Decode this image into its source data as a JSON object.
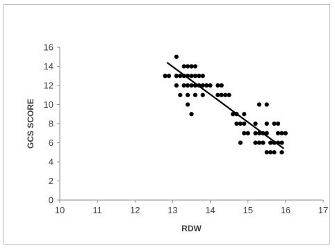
{
  "chart_data": {
    "type": "scatter",
    "title": "",
    "xlabel": "RDW",
    "ylabel": "GCS SCORE",
    "xlim": [
      10,
      17
    ],
    "ylim": [
      0,
      16
    ],
    "x_ticks": [
      "10",
      "11",
      "12",
      "13",
      "14",
      "15",
      "16",
      "17"
    ],
    "y_ticks": [
      "0",
      "2",
      "4",
      "6",
      "8",
      "10",
      "12",
      "14",
      "16"
    ],
    "grid": false,
    "legend": "none",
    "marker_color": "#000000",
    "points": [
      [
        12.8,
        13
      ],
      [
        12.9,
        13
      ],
      [
        13.1,
        15
      ],
      [
        13.1,
        13
      ],
      [
        13.1,
        12
      ],
      [
        13.2,
        13
      ],
      [
        13.2,
        11
      ],
      [
        13.3,
        14
      ],
      [
        13.3,
        13
      ],
      [
        13.3,
        12
      ],
      [
        13.4,
        14
      ],
      [
        13.4,
        13
      ],
      [
        13.4,
        12
      ],
      [
        13.4,
        11
      ],
      [
        13.4,
        10
      ],
      [
        13.5,
        14
      ],
      [
        13.5,
        13
      ],
      [
        13.5,
        12
      ],
      [
        13.5,
        9
      ],
      [
        13.6,
        14
      ],
      [
        13.6,
        13
      ],
      [
        13.6,
        12
      ],
      [
        13.6,
        11
      ],
      [
        13.7,
        13
      ],
      [
        13.7,
        12
      ],
      [
        13.8,
        13
      ],
      [
        13.8,
        12
      ],
      [
        13.8,
        11
      ],
      [
        13.9,
        12
      ],
      [
        14.0,
        12
      ],
      [
        14.2,
        12
      ],
      [
        14.2,
        11
      ],
      [
        14.3,
        12
      ],
      [
        14.3,
        11
      ],
      [
        14.4,
        11
      ],
      [
        14.5,
        11
      ],
      [
        14.6,
        9
      ],
      [
        14.7,
        9
      ],
      [
        14.7,
        8
      ],
      [
        14.8,
        6
      ],
      [
        14.8,
        8
      ],
      [
        14.9,
        9
      ],
      [
        14.9,
        8
      ],
      [
        14.9,
        7
      ],
      [
        15.0,
        7
      ],
      [
        15.2,
        8
      ],
      [
        15.2,
        7
      ],
      [
        15.2,
        6
      ],
      [
        15.3,
        10
      ],
      [
        15.3,
        7
      ],
      [
        15.3,
        6
      ],
      [
        15.4,
        7
      ],
      [
        15.4,
        6
      ],
      [
        15.5,
        10
      ],
      [
        15.5,
        8
      ],
      [
        15.5,
        7
      ],
      [
        15.5,
        5
      ],
      [
        15.6,
        6
      ],
      [
        15.6,
        5
      ],
      [
        15.7,
        8
      ],
      [
        15.7,
        6
      ],
      [
        15.7,
        5
      ],
      [
        15.8,
        8
      ],
      [
        15.8,
        7
      ],
      [
        15.8,
        6
      ],
      [
        15.9,
        7
      ],
      [
        15.9,
        6
      ],
      [
        15.9,
        5
      ],
      [
        16.0,
        7
      ]
    ],
    "trendline": {
      "type": "linear",
      "from": [
        12.85,
        14.4
      ],
      "to": [
        15.95,
        5.4
      ]
    }
  }
}
